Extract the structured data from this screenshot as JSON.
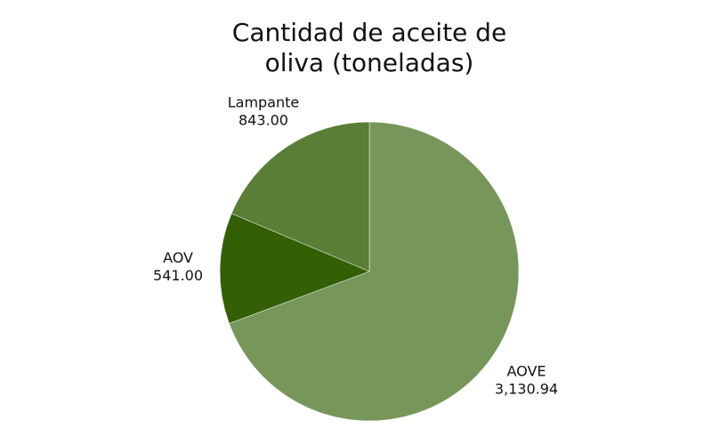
{
  "chart_data": {
    "type": "pie",
    "title": "Cantidad de aceite de oliva (toneladas)",
    "categories": [
      "AOVE",
      "AOV",
      "Lampante"
    ],
    "values": [
      3130.94,
      541.0,
      843.0
    ],
    "value_labels": [
      "3,130.94",
      "541.00",
      "843.00"
    ],
    "colors": [
      "#77965a",
      "#335f05",
      "#5a7e35"
    ]
  }
}
